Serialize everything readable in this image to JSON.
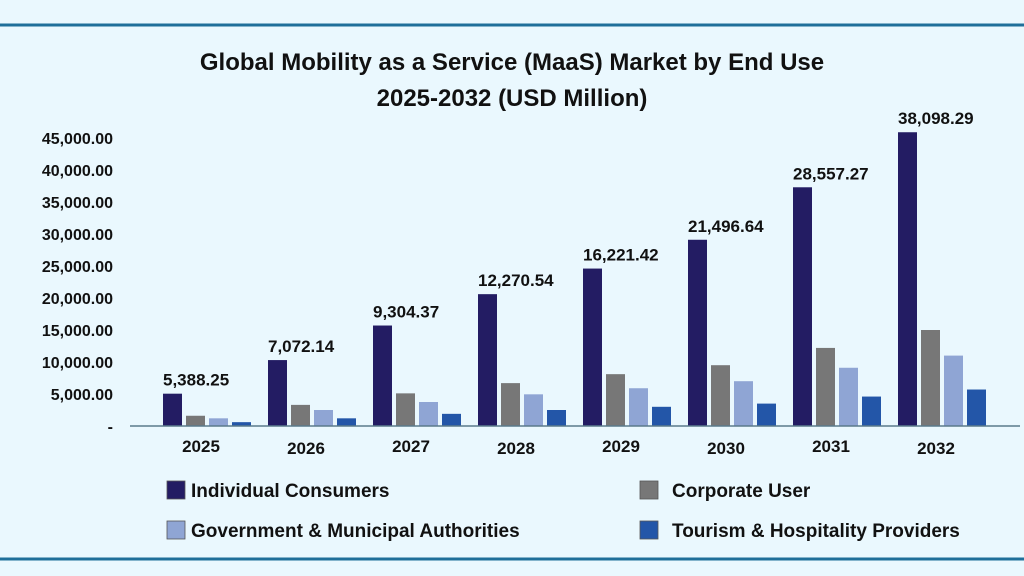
{
  "chart_data": {
    "type": "bar",
    "title": "Global Mobility as a Service (MaaS) Market by End Use",
    "subtitle": "2025-2032 (USD Million)",
    "xlabel": "",
    "ylabel": "",
    "ylim": [
      0,
      45000
    ],
    "yticks": [
      "-",
      "5,000.00",
      "10,000.00",
      "15,000.00",
      "20,000.00",
      "25,000.00",
      "30,000.00",
      "35,000.00",
      "40,000.00",
      "45,000.00"
    ],
    "grid": false,
    "legend_position": "bottom",
    "categories": [
      "2025",
      "2026",
      "2027",
      "2028",
      "2029",
      "2030",
      "2031",
      "2032"
    ],
    "series": [
      {
        "name": "Individual Consumers",
        "color": "#231c63",
        "values": [
          5050,
          10300,
          15700,
          20600,
          24600,
          29100,
          37300,
          45900
        ]
      },
      {
        "name": "Corporate User",
        "color": "#777777",
        "values": [
          1600,
          3300,
          5100,
          6700,
          8100,
          9500,
          12200,
          15000
        ]
      },
      {
        "name": "Government & Municipal Authorities",
        "color": "#8fa5d4",
        "values": [
          1200,
          2500,
          3750,
          4950,
          5900,
          7000,
          9100,
          11000
        ]
      },
      {
        "name": "Tourism & Hospitality Providers",
        "color": "#2356a8",
        "values": [
          600,
          1200,
          1900,
          2500,
          3000,
          3500,
          4600,
          5700
        ]
      }
    ],
    "data_labels": [
      "5,388.25",
      "7,072.14",
      "9,304.37",
      "12,270.54",
      "16,221.42",
      "21,496.64",
      "28,557.27",
      "38,098.29"
    ],
    "colors": {
      "background": "#eaf8fe",
      "frame_line": "#1f6f9a",
      "axis": "#5a7a8c"
    }
  }
}
